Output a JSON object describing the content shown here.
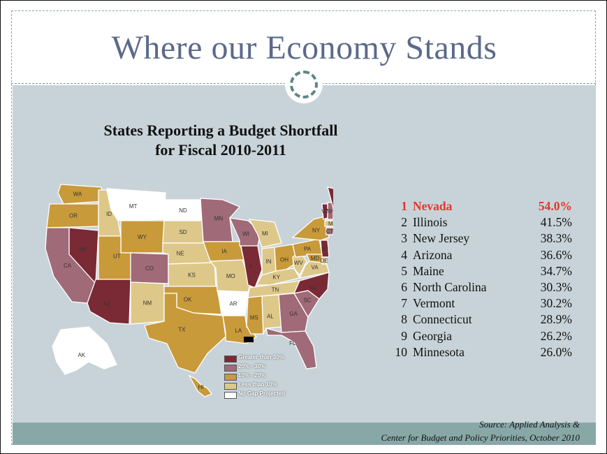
{
  "slide": {
    "title": "Where our Economy Stands"
  },
  "chart": {
    "title_line1": "States Reporting a Budget Shortfall",
    "title_line2": "for Fiscal 2010-2011"
  },
  "colors": {
    "greater_than_30": "#7a2a35",
    "range_20_30": "#a06a78",
    "range_10_20": "#c99a3a",
    "less_than_10": "#ddc88a",
    "no_gap": "#ffffff",
    "highlight": "#e5342a"
  },
  "legend": [
    {
      "label": "Greater than 30%",
      "color": "#7a2a35"
    },
    {
      "label": "20% - 30%",
      "color": "#a06a78"
    },
    {
      "label": "10% - 20%",
      "color": "#c99a3a"
    },
    {
      "label": "Less than 10%",
      "color": "#ddc88a"
    },
    {
      "label": "No Gap Projected",
      "color": "#ffffff"
    }
  ],
  "map_labels": [
    "WA",
    "OR",
    "CA",
    "NV",
    "ID",
    "MT",
    "WY",
    "UT",
    "AZ",
    "CO",
    "NM",
    "ND",
    "SD",
    "NE",
    "KS",
    "OK",
    "TX",
    "MN",
    "IA",
    "MO",
    "AR",
    "LA",
    "WI",
    "IL",
    "MI",
    "IN",
    "OH",
    "KY",
    "TN",
    "MS",
    "AL",
    "GA",
    "FL",
    "SC",
    "NC",
    "VA",
    "WV",
    "PA",
    "NY",
    "VT",
    "NH",
    "ME",
    "MA",
    "CT",
    "RI",
    "NJ",
    "DE",
    "MD",
    "DC",
    "AK",
    "HI"
  ],
  "ranking": [
    {
      "rank": "1",
      "state": "Nevada",
      "pct": "54.0%"
    },
    {
      "rank": "2",
      "state": "Illinois",
      "pct": "41.5%"
    },
    {
      "rank": "3",
      "state": "New Jersey",
      "pct": "38.3%"
    },
    {
      "rank": "4",
      "state": "Arizona",
      "pct": "36.6%"
    },
    {
      "rank": "5",
      "state": "Maine",
      "pct": "34.7%"
    },
    {
      "rank": "6",
      "state": "North Carolina",
      "pct": "30.3%"
    },
    {
      "rank": "7",
      "state": "Vermont",
      "pct": "30.2%"
    },
    {
      "rank": "8",
      "state": "Connecticut",
      "pct": "28.9%"
    },
    {
      "rank": "9",
      "state": "Georgia",
      "pct": "26.2%"
    },
    {
      "rank": "10",
      "state": "Minnesota",
      "pct": "26.0%"
    }
  ],
  "source": {
    "line1": "Source:  Applied Analysis &",
    "line2": "Center for Budget and Policy Priorities, October 2010"
  }
}
